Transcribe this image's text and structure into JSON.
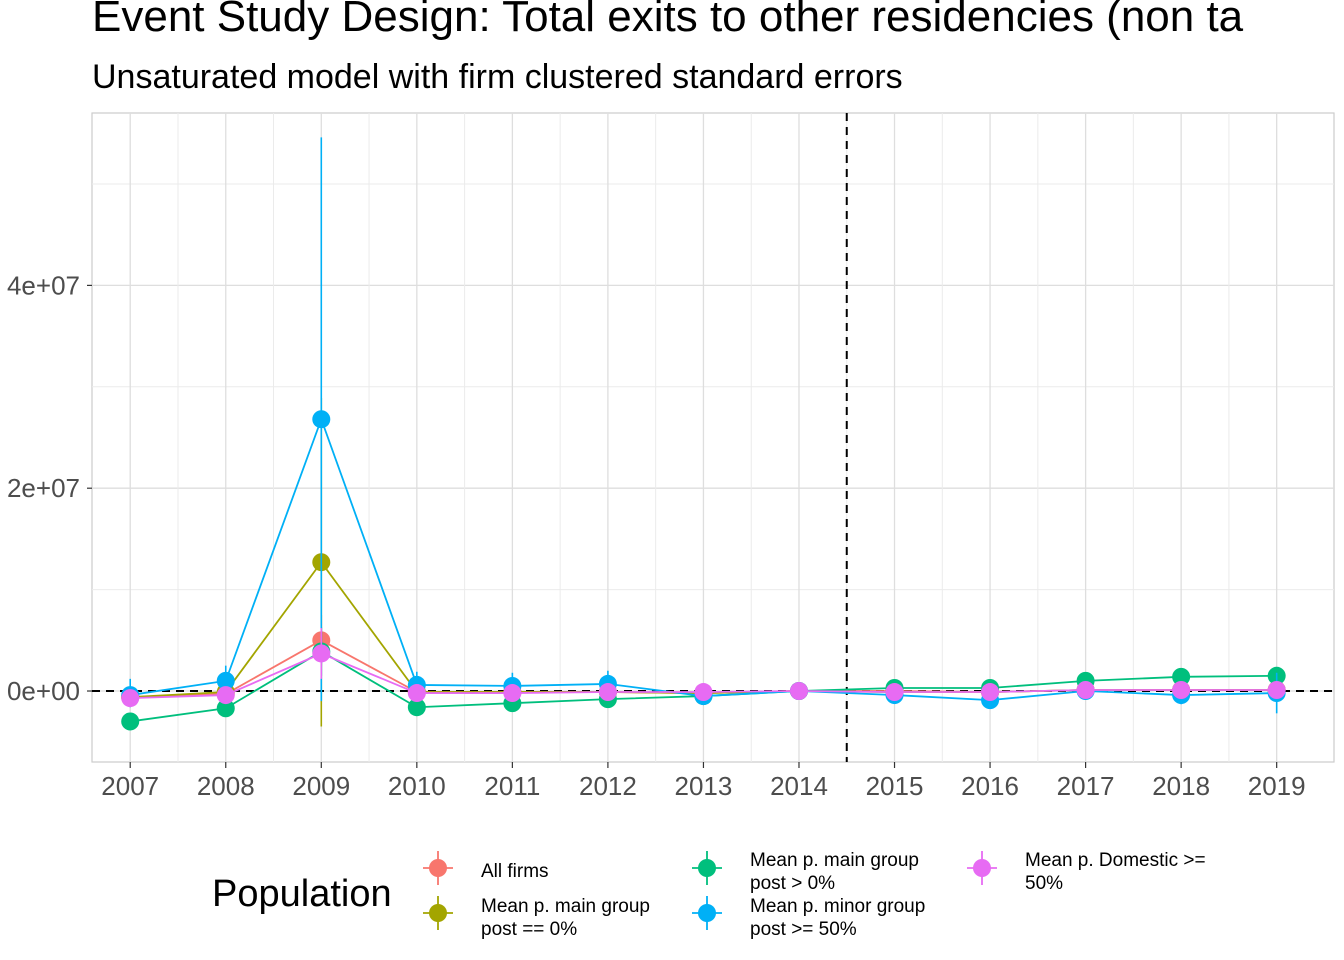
{
  "title": "Event Study Design: Total exits to other residencies (non ta",
  "subtitle": "Unsaturated model with firm clustered standard errors",
  "chart_data": {
    "type": "line",
    "x": [
      2007,
      2008,
      2009,
      2010,
      2011,
      2012,
      2013,
      2014,
      2015,
      2016,
      2017,
      2018,
      2019
    ],
    "ylim": [
      -7000000,
      57000000
    ],
    "y_ticks": [
      0,
      20000000,
      40000000
    ],
    "y_tick_labels": [
      "0e+00",
      "2e+07",
      "4e+07"
    ],
    "x_tick_labels": [
      "2007",
      "2008",
      "2009",
      "2010",
      "2011",
      "2012",
      "2013",
      "2014",
      "2015",
      "2016",
      "2017",
      "2018",
      "2019"
    ],
    "reference_lines": {
      "horizontal_y": 0,
      "vertical_x": 2014.5,
      "style": "dashed"
    },
    "grid": true,
    "legend": {
      "title": "Population",
      "placement": "bottom"
    },
    "series": [
      {
        "name": "All firms",
        "color": "#F8766D",
        "values": [
          -600000,
          -300000,
          5000000,
          -100000,
          -100000,
          -100000,
          -200000,
          0,
          0,
          -100000,
          100000,
          100000,
          100000
        ],
        "ci_low": [
          -1200000,
          -900000,
          2500000,
          -600000,
          -500000,
          -500000,
          -500000,
          0,
          -300000,
          -400000,
          -200000,
          -200000,
          -200000
        ],
        "ci_high": [
          0,
          300000,
          7500000,
          400000,
          300000,
          300000,
          100000,
          0,
          300000,
          200000,
          400000,
          400000,
          400000
        ]
      },
      {
        "name": "Mean p. main group post == 0%",
        "color": "#A3A500",
        "values": [
          -600000,
          -100000,
          12700000,
          -100000,
          -100000,
          -100000,
          -200000,
          0,
          -100000,
          -100000,
          100000,
          100000,
          100000
        ],
        "ci_low": [
          -1300000,
          -1000000,
          -3500000,
          -700000,
          -600000,
          -600000,
          -600000,
          0,
          -500000,
          -500000,
          -300000,
          -300000,
          -300000
        ],
        "ci_high": [
          100000,
          800000,
          28900000,
          500000,
          400000,
          400000,
          200000,
          0,
          300000,
          300000,
          500000,
          500000,
          500000
        ]
      },
      {
        "name": "Mean p. main group post > 0%",
        "color": "#00BF7D",
        "values": [
          -3000000,
          -1700000,
          3900000,
          -1600000,
          -1200000,
          -800000,
          -500000,
          0,
          300000,
          300000,
          1000000,
          1400000,
          1500000
        ],
        "ci_low": [
          -3600000,
          -2400000,
          1500000,
          -2200000,
          -1800000,
          -1300000,
          -900000,
          0,
          -100000,
          -200000,
          500000,
          900000,
          1000000
        ],
        "ci_high": [
          -2400000,
          -1000000,
          6300000,
          -1000000,
          -600000,
          -300000,
          -100000,
          0,
          700000,
          800000,
          1500000,
          1900000,
          2000000
        ]
      },
      {
        "name": "Mean p. minor group post >= 50%",
        "color": "#00B0F6",
        "values": [
          -400000,
          1000000,
          26800000,
          600000,
          500000,
          700000,
          -500000,
          0,
          -400000,
          -900000,
          0,
          -400000,
          -200000
        ],
        "ci_low": [
          -1600000,
          -500000,
          -1000000,
          -700000,
          -800000,
          -600000,
          -1000000,
          0,
          -1000000,
          -1600000,
          -800000,
          -1300000,
          -2200000
        ],
        "ci_high": [
          1200000,
          2500000,
          54600000,
          1900000,
          1800000,
          2000000,
          0,
          0,
          200000,
          -200000,
          800000,
          500000,
          1800000
        ]
      },
      {
        "name": "Mean p. Domestic >= 50%",
        "color": "#E76BF3",
        "values": [
          -700000,
          -400000,
          3700000,
          -200000,
          -200000,
          -100000,
          -100000,
          0,
          -100000,
          -100000,
          100000,
          100000,
          100000
        ],
        "ci_low": [
          -1300000,
          -1000000,
          1200000,
          -700000,
          -600000,
          -500000,
          -400000,
          0,
          -400000,
          -400000,
          -200000,
          -200000,
          -200000
        ],
        "ci_high": [
          -100000,
          200000,
          6200000,
          300000,
          200000,
          300000,
          200000,
          0,
          200000,
          200000,
          400000,
          400000,
          400000
        ]
      }
    ]
  },
  "legend_labels": [
    [
      "All firms"
    ],
    [
      "Mean p. main group",
      "post == 0%"
    ],
    [
      "Mean p. main group",
      "post > 0%"
    ],
    [
      "Mean p. minor group",
      "post >= 50%"
    ],
    [
      "Mean p. Domestic >=",
      "50%"
    ]
  ]
}
